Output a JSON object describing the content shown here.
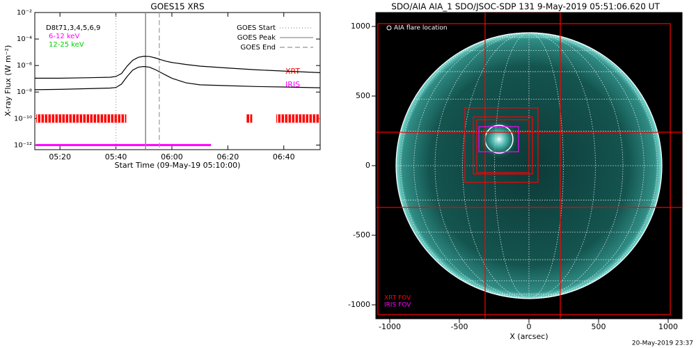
{
  "chart_data": [
    {
      "type": "line",
      "title": "GOES15 XRS",
      "xlabel": "Start Time (09-May-19 05:10:00)",
      "ylabel": "X-ray Flux (W m⁻²)",
      "log_y": true,
      "xlim": [
        1,
        103
      ],
      "ylim": [
        4.5e-13,
        0.01
      ],
      "xticks": [
        {
          "value": 10,
          "label": "05:20"
        },
        {
          "value": 30,
          "label": "05:40"
        },
        {
          "value": 50,
          "label": "06:00"
        },
        {
          "value": 70,
          "label": "06:20"
        },
        {
          "value": 90,
          "label": "06:40"
        }
      ],
      "yticks": [
        {
          "value": 1e-12,
          "label": "10⁻¹²"
        },
        {
          "value": 1e-10,
          "label": "10⁻¹⁰"
        },
        {
          "value": 1e-08,
          "label": "10⁻⁸"
        },
        {
          "value": 1e-06,
          "label": "10⁻⁶"
        },
        {
          "value": 0.0001,
          "label": "10⁻⁴"
        },
        {
          "value": 0.01,
          "label": "10⁻²"
        }
      ],
      "x": [
        1,
        10,
        20,
        28,
        30,
        32,
        34,
        36,
        38,
        40,
        42,
        44,
        46,
        48,
        50,
        55,
        60,
        70,
        80,
        90,
        103
      ],
      "series": [
        {
          "color": "#000000",
          "values": [
            1.1e-07,
            1.1e-07,
            1.2e-07,
            1.3e-07,
            1.5e-07,
            2.5e-07,
            9e-07,
            2.5e-06,
            4.2e-06,
            5e-06,
            4.8e-06,
            3.8e-06,
            2.8e-06,
            2.1e-06,
            1.7e-06,
            1.2e-06,
            9e-07,
            6.5e-07,
            4.8e-07,
            3.8e-07,
            2.9e-07
          ]
        },
        {
          "color": "#000000",
          "values": [
            1.5e-08,
            1.6e-08,
            1.8e-08,
            2e-08,
            2.2e-08,
            4e-08,
            1.5e-07,
            4.5e-07,
            7.5e-07,
            8.5e-07,
            7.5e-07,
            5e-07,
            3e-07,
            1.8e-07,
            1.1e-07,
            5e-08,
            3.5e-08,
            3e-08,
            2.6e-08,
            2.4e-08,
            2.1e-08
          ]
        }
      ],
      "detectors": "D8t71,3,4,5,6,9",
      "channel_labels": [
        {
          "text": "6-12 keV",
          "color": "#ff00ff"
        },
        {
          "text": "12-25 keV",
          "color": "#00cc00"
        }
      ],
      "markers": [
        {
          "name": "GOES Start",
          "x": 30,
          "style": "dotted"
        },
        {
          "name": "GOES Peak",
          "x": 40.6,
          "style": "solid"
        },
        {
          "name": "GOES End",
          "x": 45.5,
          "style": "dashed"
        }
      ],
      "coverage": [
        {
          "name": "XRT",
          "color": "#ff0000",
          "level": 1e-10,
          "intervals": [
            [
              1.5,
              33.7
            ],
            [
              76.7,
              78.7
            ],
            [
              87.3,
              102.7
            ]
          ]
        },
        {
          "name": "IRIS",
          "color": "#ff00ff",
          "level": 1e-12,
          "intervals": [
            [
              1.5,
              64
            ]
          ]
        }
      ]
    },
    {
      "type": "image",
      "title": "SDO/AIA AIA_1 SDO/JSOC-SDP 131  9-May-2019 05:51:06.620 UT",
      "xlabel": "X (arcsec)",
      "xlim": [
        -1100,
        1100
      ],
      "ylim": [
        -1100,
        1100
      ],
      "xticks": [
        -1000,
        -500,
        0,
        500,
        1000
      ],
      "yticks": [
        -1000,
        -500,
        0,
        500,
        1000
      ],
      "disk_radius": 955,
      "fov_boxes": [
        {
          "name": "XRT FOV",
          "color": "#ff0000",
          "boxes": [
            [
              -1085,
              -1070,
              1015,
              1020
            ],
            [
              -315,
              -1100,
              225,
              1100
            ],
            [
              -1100,
              -300,
              1100,
              240
            ],
            [
              -460,
              -120,
              65,
              415
            ],
            [
              -400,
              -60,
              25,
              350
            ],
            [
              -375,
              -50,
              0,
              330
            ]
          ]
        },
        {
          "name": "IRIS FOV",
          "color": "#ff00ff",
          "boxes": [
            [
              -360,
              100,
              -75,
              280
            ]
          ]
        }
      ],
      "flare": {
        "label": "AIA flare location",
        "x": -215,
        "y": 190,
        "radius": 100
      },
      "timestamp": "20-May-2019 23:37"
    }
  ]
}
